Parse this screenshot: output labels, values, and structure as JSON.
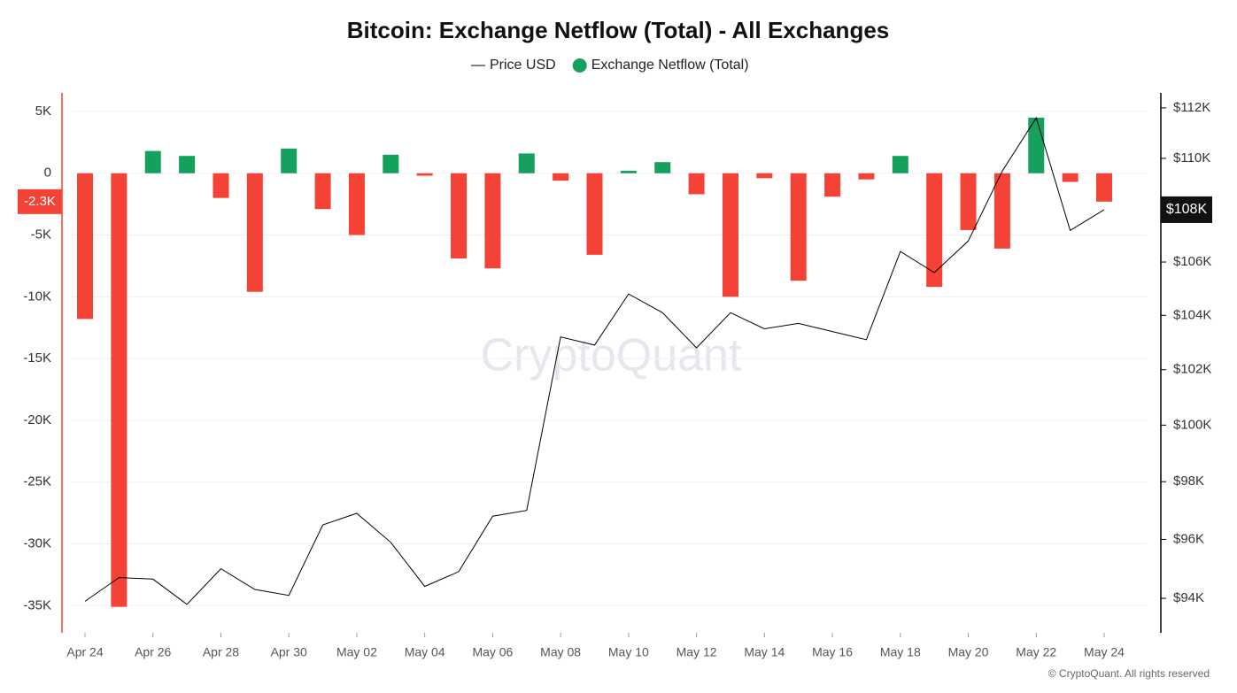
{
  "chart_data": {
    "type": "bar",
    "title": "Bitcoin: Exchange Netflow (Total) - All Exchanges",
    "watermark": "CryptoQuant",
    "footer": "© CryptoQuant. All rights reserved",
    "categories": [
      "Apr 24",
      null,
      "Apr 26",
      null,
      "Apr 28",
      null,
      "Apr 30",
      null,
      "May 02",
      null,
      "May 04",
      null,
      "May 06",
      null,
      "May 08",
      null,
      "May 10",
      null,
      "May 12",
      null,
      "May 14",
      null,
      "May 16",
      null,
      "May 18",
      null,
      "May 20",
      null,
      "May 22",
      null,
      "May 24"
    ],
    "series": [
      {
        "name": "Price USD",
        "type": "line",
        "axis": "y2",
        "color": "#000000",
        "values": [
          93900,
          94700,
          94650,
          93800,
          95000,
          94300,
          94100,
          96500,
          96900,
          95900,
          94400,
          94900,
          96800,
          97000,
          103200,
          102900,
          104800,
          104100,
          102800,
          104100,
          103500,
          103700,
          103400,
          103100,
          106400,
          105600,
          106800,
          109500,
          111600,
          107200,
          108000
        ]
      },
      {
        "name": "Exchange Netflow (Total)",
        "type": "bar",
        "color": "#16a05d",
        "negative_color": "#f44336",
        "values": [
          -11800,
          -35100,
          1800,
          1400,
          -2000,
          -9600,
          2000,
          -2900,
          -5000,
          1500,
          -200,
          -6900,
          -7700,
          1600,
          -600,
          -6600,
          200,
          900,
          -1700,
          -10000,
          -400,
          -8700,
          -1900,
          -500,
          1400,
          -9200,
          -4600,
          -6100,
          4500,
          -700,
          -2300
        ]
      }
    ],
    "ylim": [
      -37200,
      6500
    ],
    "yticks": [
      {
        "value": 5000,
        "label": "5K"
      },
      0,
      {
        "value": -5000,
        "label": "-5K"
      },
      {
        "value": -10000,
        "label": "-10K"
      },
      {
        "value": -15000,
        "label": "-15K"
      },
      {
        "value": -20000,
        "label": "-20K"
      },
      {
        "value": -25000,
        "label": "-25K"
      },
      {
        "value": -30000,
        "label": "-30K"
      },
      {
        "value": -35000,
        "label": "-35K"
      }
    ],
    "y2lim": [
      92850,
      112600
    ],
    "y2scale": "log",
    "y2ticks": [
      {
        "value": 112000,
        "label": "$112K"
      },
      {
        "value": 110000,
        "label": "$110K"
      },
      {
        "value": 108000,
        "label": "$108K"
      },
      {
        "value": 106000,
        "label": "$106K"
      },
      {
        "value": 104000,
        "label": "$104K"
      },
      {
        "value": 102000,
        "label": "$102K"
      },
      {
        "value": 100000,
        "label": "$100K"
      },
      {
        "value": 98000,
        "label": "$98K"
      },
      {
        "value": 96000,
        "label": "$96K"
      },
      {
        "value": 94000,
        "label": "$94K"
      }
    ],
    "annotations": [
      {
        "label": "-2.3K",
        "value": -2300,
        "axis": "y"
      },
      {
        "label": "$108K",
        "value": 108000,
        "axis": "y2"
      }
    ],
    "grid": true,
    "legend": "top"
  }
}
